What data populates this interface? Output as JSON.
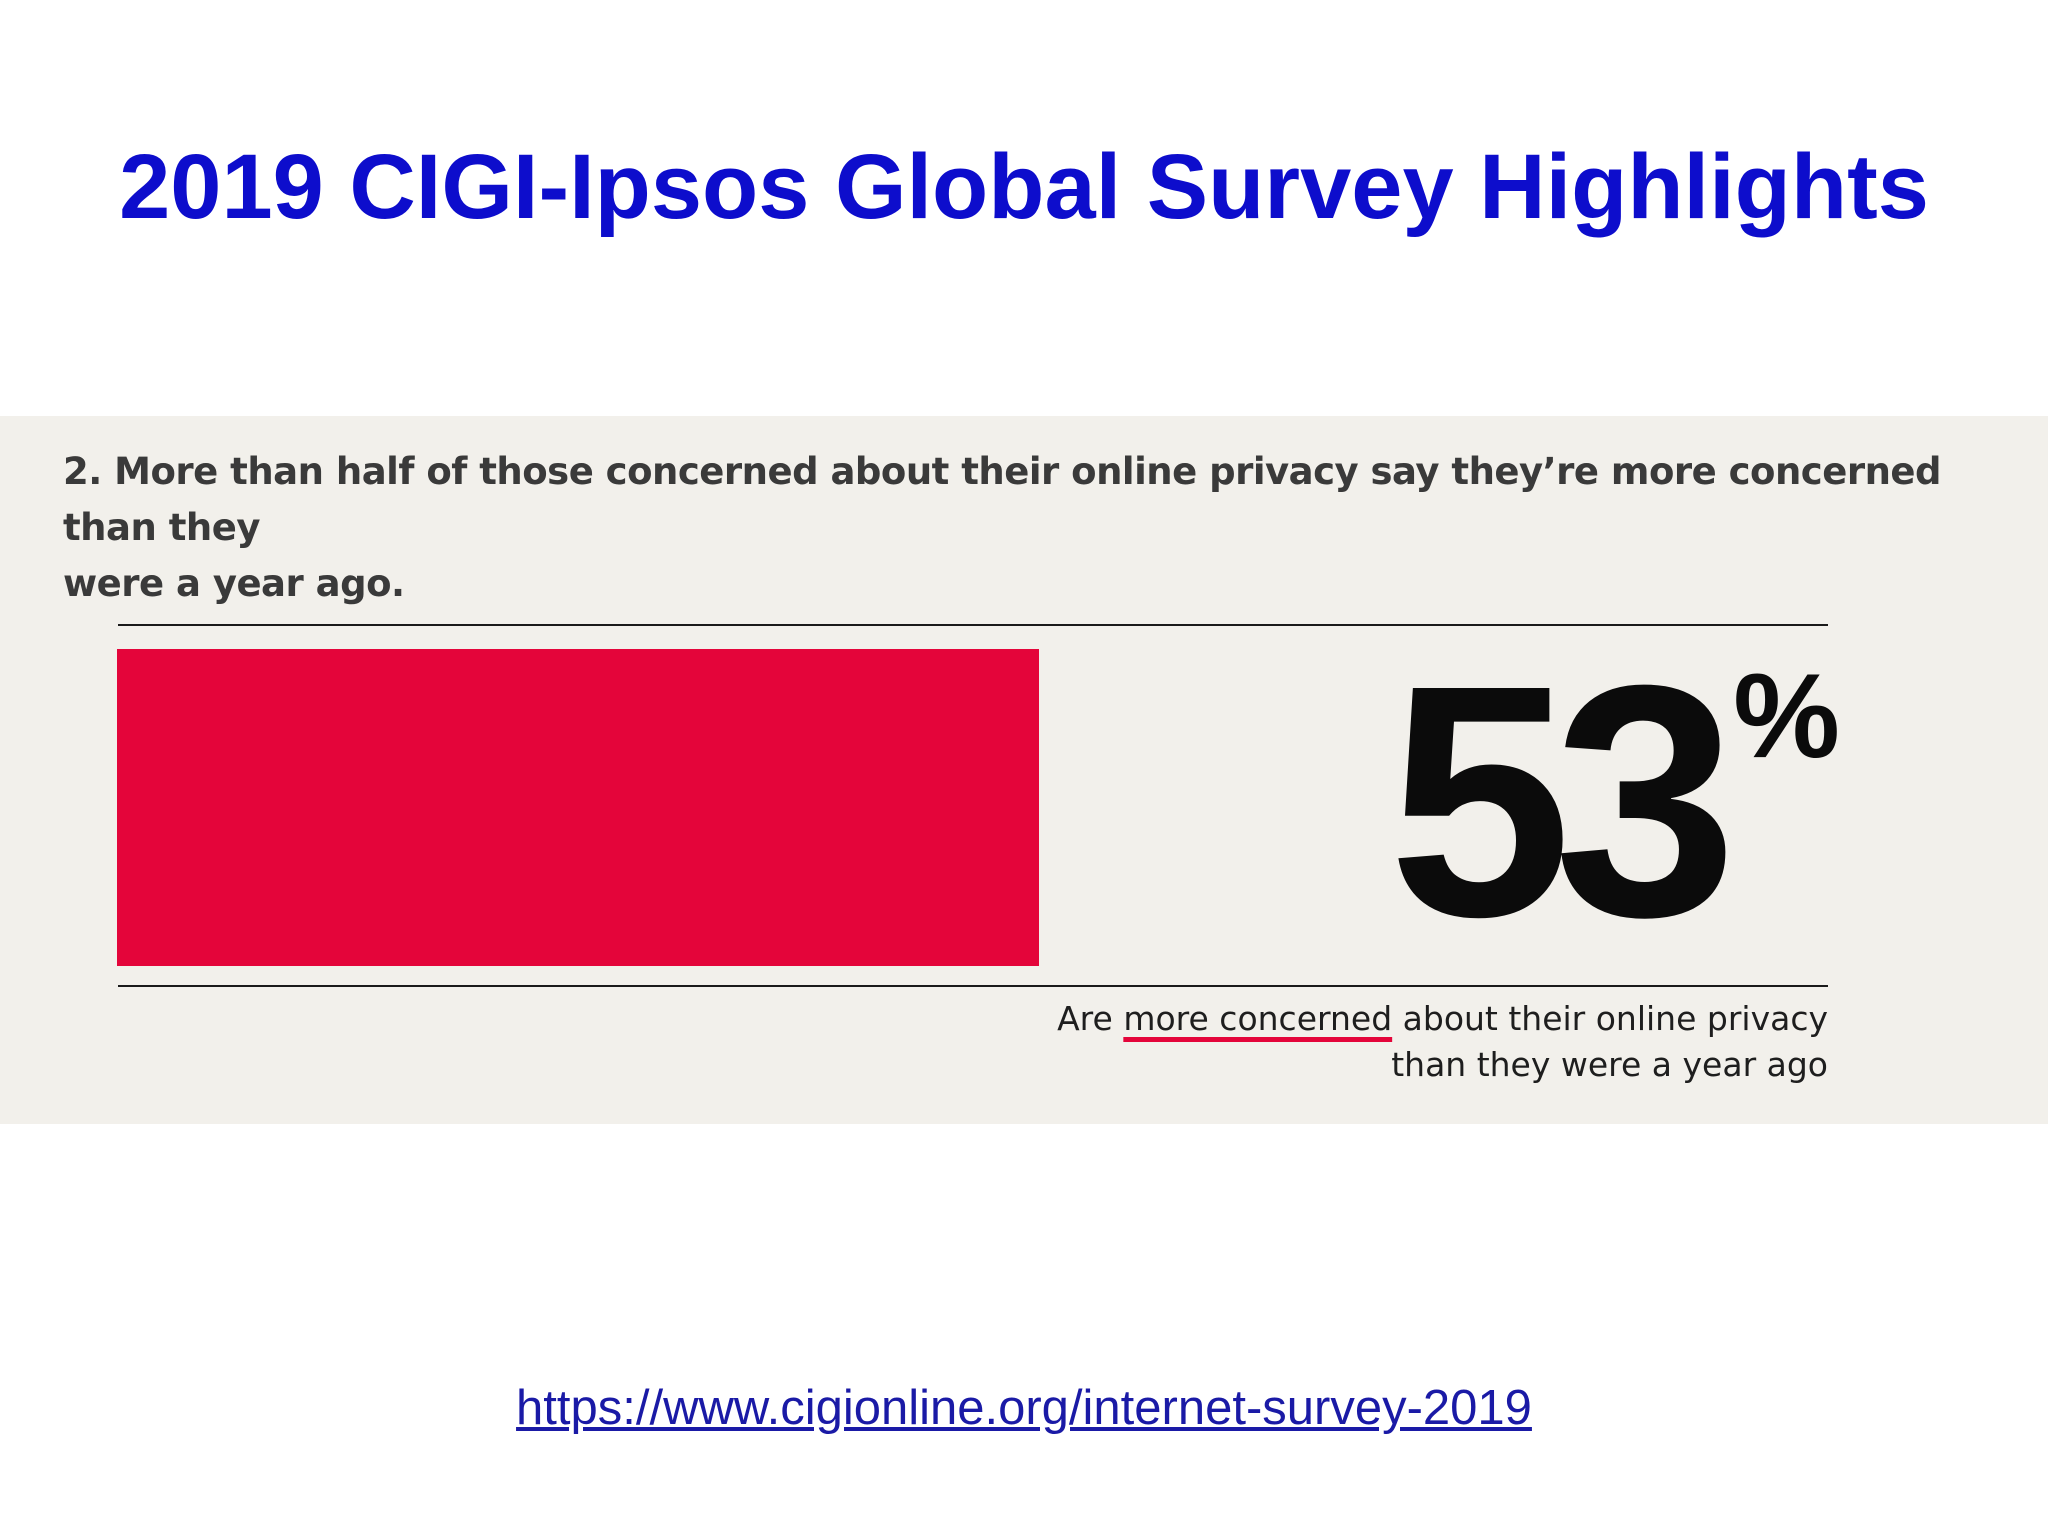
{
  "slide": {
    "title": "2019 CIGI-Ipsos Global Survey Highlights",
    "link_text": "https://www.cigionline.org/internet-survey-2019"
  },
  "infographic": {
    "headline_line1": "2. More than half of those concerned about their online privacy say they’re more concerned than they",
    "headline_line2": "were a year ago.",
    "stat_value": "53",
    "stat_sign": "%",
    "stat_fraction": 0.53,
    "caption_part1": "Are ",
    "caption_highlight": "more concerned",
    "caption_part2": " about their online privacy",
    "caption_line2": "than they were a year ago",
    "colors": {
      "bar": "#e4053a",
      "title": "#0d0dcc",
      "panel_background": "#f2f0eb"
    }
  }
}
